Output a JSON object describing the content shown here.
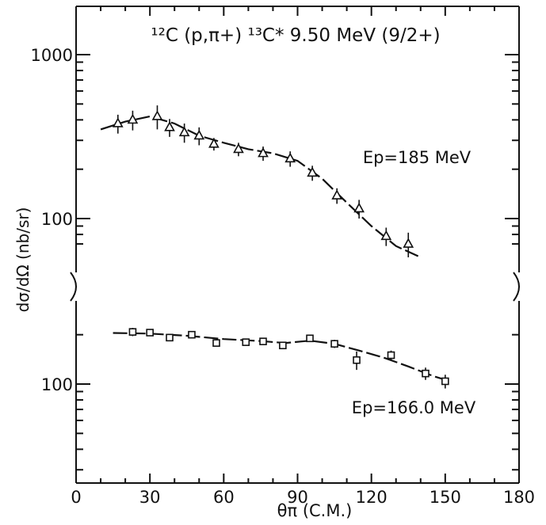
{
  "chart_data": {
    "type": "scatter",
    "title": "",
    "xlabel": "θπ (C.M.)",
    "ylabel": "dσ/dΩ (nb/sr)",
    "xlim": [
      0,
      180
    ],
    "x_ticks": [
      "0",
      "30",
      "60",
      "90",
      "120",
      "150",
      "180"
    ],
    "y_scale": "log, broken axis (two stacked decades)",
    "upper_panel_ticks": [
      "1000",
      "100"
    ],
    "lower_panel_ticks": [
      "100"
    ],
    "grid": false,
    "annotations": {
      "reaction_title": "¹²C (p,π+) ¹³C* 9.50 MeV (9/2+)",
      "upper_label": "Ep=185 MeV",
      "lower_label": "Ep=166.0 MeV"
    },
    "series": [
      {
        "name": "Ep=185 MeV",
        "marker": "triangle",
        "x": [
          17,
          23,
          33,
          38,
          44,
          50,
          56,
          66,
          76,
          87,
          96,
          106,
          115,
          126,
          135
        ],
        "y": [
          380,
          400,
          420,
          360,
          335,
          320,
          285,
          265,
          250,
          232,
          190,
          138,
          115,
          78,
          70
        ],
        "err": [
          50,
          55,
          70,
          45,
          45,
          40,
          25,
          25,
          25,
          25,
          20,
          15,
          15,
          10,
          12
        ],
        "fit_x": [
          10,
          20,
          30,
          40,
          50,
          60,
          70,
          80,
          90,
          100,
          110,
          120,
          130,
          140
        ],
        "fit_y": [
          350,
          390,
          420,
          380,
          320,
          290,
          265,
          250,
          225,
          175,
          125,
          90,
          68,
          58
        ]
      },
      {
        "name": "Ep=166.0 MeV",
        "marker": "square",
        "x": [
          23,
          30,
          38,
          47,
          57,
          69,
          76,
          84,
          95,
          105,
          114,
          128,
          142,
          150
        ],
        "y": [
          208,
          206,
          192,
          200,
          178,
          180,
          182,
          172,
          190,
          176,
          140,
          150,
          116,
          104
        ],
        "err": [
          12,
          10,
          8,
          8,
          8,
          8,
          8,
          8,
          8,
          10,
          18,
          10,
          10,
          10
        ],
        "fit_x": [
          15,
          30,
          45,
          60,
          75,
          85,
          95,
          105,
          115,
          125,
          135,
          145,
          152
        ],
        "fit_y": [
          205,
          203,
          197,
          188,
          183,
          178,
          184,
          176,
          160,
          145,
          128,
          112,
          104
        ]
      }
    ]
  }
}
